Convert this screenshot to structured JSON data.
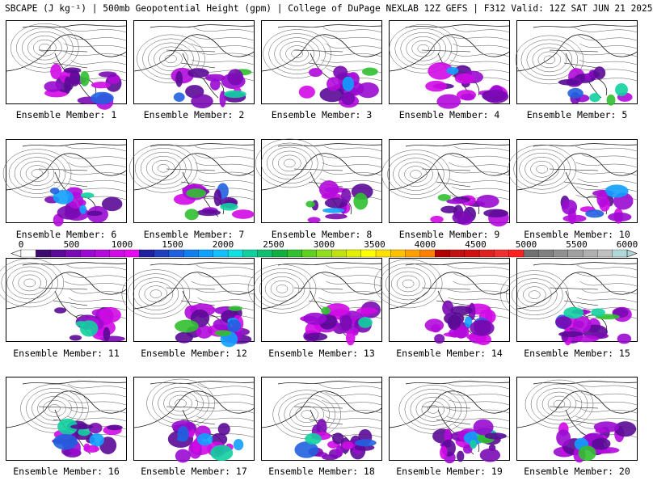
{
  "title": "SBCAPE (J kg⁻¹) | 500mb Geopotential Height (gpm) | College of DuPage NEXLAB 12Z GEFS | F312 Valid: 12Z SAT JUN 21 2025",
  "member_label_prefix": "Ensemble Member: ",
  "members": [
    "1",
    "2",
    "3",
    "4",
    "5",
    "6",
    "7",
    "8",
    "9",
    "10",
    "11",
    "12",
    "13",
    "14",
    "15",
    "16",
    "17",
    "18",
    "19",
    "20"
  ],
  "colorbar": {
    "labels": [
      "0",
      "500",
      "1000",
      "1500",
      "2000",
      "2500",
      "3000",
      "3500",
      "4000",
      "4500",
      "5000",
      "5500",
      "6000"
    ],
    "colors": [
      "#ffffff",
      "#3c0b6e",
      "#5a0a96",
      "#7a0ab4",
      "#9a0ad2",
      "#b40adc",
      "#d20ae6",
      "#e60af0",
      "#2020a0",
      "#2040c0",
      "#2060e0",
      "#1080f0",
      "#10a0ff",
      "#10c0ff",
      "#10e0e0",
      "#10d0a0",
      "#10c070",
      "#10b040",
      "#30c030",
      "#60d020",
      "#90e020",
      "#c0e010",
      "#e0f000",
      "#ffff00",
      "#ffe000",
      "#ffc000",
      "#ffa000",
      "#ff8000",
      "#b00000",
      "#c01010",
      "#d01010",
      "#e02020",
      "#f03030",
      "#ff2020",
      "#707070",
      "#808080",
      "#909090",
      "#a0a0a0",
      "#b0b0b0",
      "#c0c0c0",
      "#b0d8d8"
    ]
  }
}
